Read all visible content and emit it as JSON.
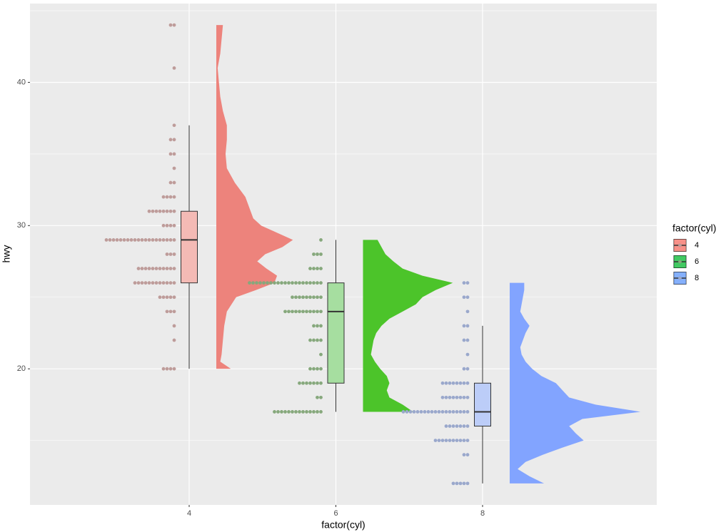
{
  "chart_data": {
    "type": "raincloud",
    "xlabel": "factor(cyl)",
    "ylabel": "hwy",
    "legend_title": "factor(cyl)",
    "categories": [
      "4",
      "6",
      "8"
    ],
    "ylim": [
      10.5,
      45.5
    ],
    "yticks": [
      20,
      30,
      40
    ],
    "minor_yticks": [
      15,
      25,
      35,
      45
    ],
    "grid": true,
    "series": [
      {
        "name": "4",
        "color": "#F8766D",
        "density_color": "#ED837C",
        "box_color": "#F4BAB5",
        "dot_color": "#BE9C9A",
        "box": {
          "lower_whisker": 20,
          "q1": 26,
          "median": 29,
          "q3": 31,
          "upper_whisker": 37
        },
        "dots": {
          "y": [
            44,
            41,
            37,
            36,
            35,
            34,
            33,
            32,
            31,
            30,
            29,
            28,
            27,
            26,
            25,
            24,
            23,
            22,
            20
          ],
          "counts": [
            2,
            1,
            1,
            2,
            2,
            1,
            2,
            4,
            8,
            4,
            20,
            3,
            11,
            12,
            5,
            3,
            1,
            1,
            4
          ]
        },
        "density": {
          "y": [
            44,
            43,
            42,
            41,
            40,
            39,
            38,
            37,
            36,
            35,
            34,
            33,
            32,
            31,
            30.5,
            30,
            29.5,
            29,
            28.5,
            28,
            27.5,
            27,
            26.5,
            26,
            25.5,
            25,
            24,
            23,
            22,
            21,
            20.5,
            20
          ],
          "values": [
            0.05,
            0.04,
            0.03,
            0.01,
            0.02,
            0.03,
            0.05,
            0.08,
            0.08,
            0.07,
            0.08,
            0.14,
            0.22,
            0.26,
            0.28,
            0.34,
            0.46,
            0.58,
            0.5,
            0.37,
            0.31,
            0.38,
            0.46,
            0.44,
            0.3,
            0.15,
            0.08,
            0.06,
            0.05,
            0.04,
            0.03,
            0.11
          ]
        }
      },
      {
        "name": "6",
        "color": "#00BA38",
        "density_color": "#4CC42A",
        "box_color": "#A6DEA0",
        "dot_color": "#86A87C",
        "box": {
          "lower_whisker": 17,
          "q1": 19,
          "median": 24,
          "q3": 26,
          "upper_whisker": 29
        },
        "dots": {
          "y": [
            29,
            28,
            27,
            26,
            25,
            24,
            23,
            22,
            21,
            20,
            19,
            18,
            17
          ],
          "counts": [
            1,
            3,
            4,
            21,
            9,
            11,
            3,
            4,
            1,
            4,
            7,
            2,
            14
          ]
        },
        "density": {
          "y": [
            29,
            28.5,
            28,
            27.5,
            27,
            26.5,
            26,
            25.5,
            25,
            24.5,
            24,
            23.5,
            23,
            22.5,
            22,
            21,
            20.5,
            20,
            19.5,
            19,
            18.5,
            18,
            17.5,
            17
          ],
          "values": [
            0.11,
            0.14,
            0.17,
            0.23,
            0.3,
            0.45,
            0.68,
            0.55,
            0.45,
            0.4,
            0.3,
            0.2,
            0.14,
            0.1,
            0.08,
            0.06,
            0.09,
            0.13,
            0.18,
            0.2,
            0.18,
            0.2,
            0.3,
            0.38
          ]
        }
      },
      {
        "name": "8",
        "color": "#619CFF",
        "density_color": "#82A4FF",
        "box_color": "#BCCDF8",
        "dot_color": "#9AA8CC",
        "box": {
          "lower_whisker": 12,
          "q1": 16,
          "median": 17,
          "q3": 19,
          "upper_whisker": 23
        },
        "dots": {
          "y": [
            26,
            25,
            24,
            23,
            22,
            21,
            20,
            19,
            18,
            17,
            16,
            15,
            14,
            12
          ],
          "counts": [
            2,
            2,
            1,
            2,
            2,
            1,
            2,
            8,
            8,
            19,
            7,
            10,
            2,
            5
          ]
        },
        "density": {
          "y": [
            26,
            25.5,
            25,
            24.5,
            24,
            23.5,
            23,
            22.5,
            22,
            21.5,
            21,
            20.5,
            20,
            19.5,
            19,
            18.5,
            18,
            17.5,
            17,
            16.5,
            16,
            15.5,
            15,
            14.5,
            14,
            13.5,
            13,
            12.5,
            12
          ],
          "values": [
            0.11,
            0.11,
            0.1,
            0.09,
            0.08,
            0.11,
            0.15,
            0.12,
            0.1,
            0.08,
            0.09,
            0.12,
            0.17,
            0.24,
            0.35,
            0.4,
            0.45,
            0.65,
            0.99,
            0.55,
            0.45,
            0.5,
            0.56,
            0.4,
            0.25,
            0.12,
            0.06,
            0.15,
            0.26
          ]
        }
      }
    ]
  }
}
